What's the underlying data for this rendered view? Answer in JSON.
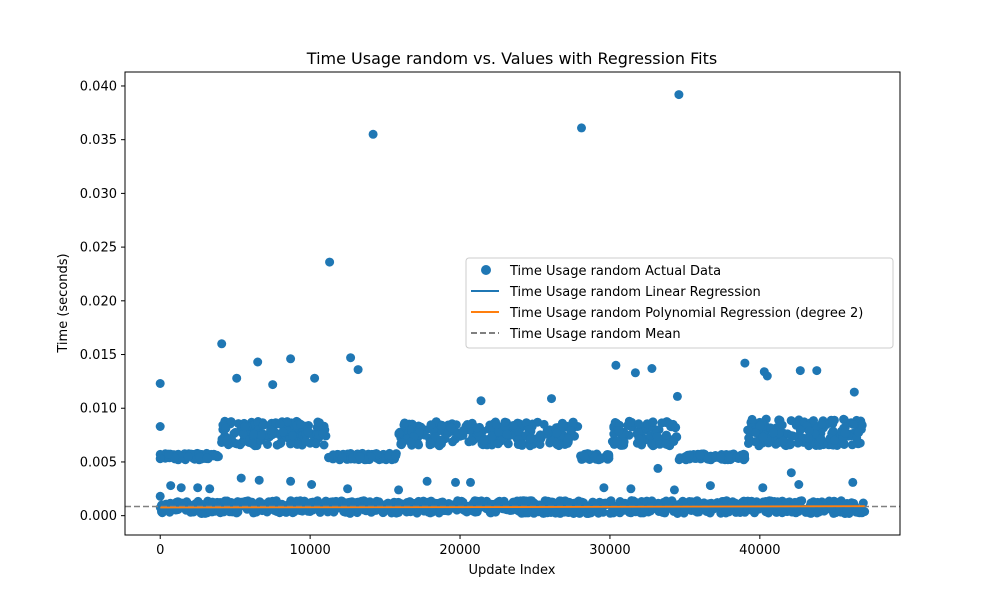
{
  "chart_data": {
    "type": "scatter",
    "title": "Time Usage random vs. Values with Regression Fits",
    "xlabel": "Update Index",
    "ylabel": "Time (seconds)",
    "xlim": [
      -2350,
      49350
    ],
    "ylim": [
      -0.0018,
      0.0413
    ],
    "x_ticks": [
      0,
      10000,
      20000,
      30000,
      40000
    ],
    "x_tick_labels": [
      "0",
      "10000",
      "20000",
      "30000",
      "40000"
    ],
    "y_ticks": [
      0.0,
      0.005,
      0.01,
      0.015,
      0.02,
      0.025,
      0.03,
      0.035,
      0.04
    ],
    "y_tick_labels": [
      "0.000",
      "0.005",
      "0.010",
      "0.015",
      "0.020",
      "0.025",
      "0.030",
      "0.035",
      "0.040"
    ],
    "grid": false,
    "legend_position": "center-right",
    "colors": {
      "scatter": "#1f77b4",
      "linear": "#1f77b4",
      "poly": "#ff7f0e",
      "mean": "#808080"
    },
    "series": [
      {
        "name": "Time Usage random Actual Data",
        "kind": "scatter",
        "points": [
          [
            0,
            0.0123
          ],
          [
            0,
            0.0083
          ],
          [
            0,
            0.0057
          ],
          [
            0,
            0.0053
          ],
          [
            0,
            0.0018
          ],
          [
            4100,
            0.016
          ],
          [
            5100,
            0.0128
          ],
          [
            6500,
            0.0143
          ],
          [
            7500,
            0.0122
          ],
          [
            8700,
            0.0146
          ],
          [
            10300,
            0.0128
          ],
          [
            11300,
            0.0236
          ],
          [
            12700,
            0.0147
          ],
          [
            13200,
            0.0136
          ],
          [
            14200,
            0.0355
          ],
          [
            26100,
            0.0109
          ],
          [
            21400,
            0.0107
          ],
          [
            28100,
            0.0361
          ],
          [
            30400,
            0.014
          ],
          [
            31700,
            0.0133
          ],
          [
            32800,
            0.0137
          ],
          [
            34600,
            0.0392
          ],
          [
            34500,
            0.0111
          ],
          [
            39000,
            0.0142
          ],
          [
            40300,
            0.0134
          ],
          [
            40500,
            0.013
          ],
          [
            42700,
            0.0135
          ],
          [
            43800,
            0.0135
          ],
          [
            46300,
            0.0115
          ],
          [
            33200,
            0.0044
          ],
          [
            42100,
            0.004
          ],
          [
            46200,
            0.0031
          ],
          [
            700,
            0.0028
          ],
          [
            1400,
            0.0026
          ],
          [
            2500,
            0.0026
          ],
          [
            3300,
            0.0025
          ],
          [
            5400,
            0.0035
          ],
          [
            6600,
            0.0033
          ],
          [
            8700,
            0.0032
          ],
          [
            10100,
            0.0029
          ],
          [
            12500,
            0.0025
          ],
          [
            15900,
            0.0024
          ],
          [
            17800,
            0.0032
          ],
          [
            19700,
            0.0031
          ],
          [
            20700,
            0.0031
          ],
          [
            29600,
            0.0026
          ],
          [
            31400,
            0.0025
          ],
          [
            34300,
            0.0024
          ],
          [
            36700,
            0.0028
          ],
          [
            40200,
            0.0026
          ],
          [
            42600,
            0.0029
          ]
        ]
      },
      {
        "name": "Time Usage random Linear Regression",
        "kind": "line",
        "x": [
          0,
          47000
        ],
        "y": [
          0.00075,
          0.00087
        ]
      },
      {
        "name": "Time Usage random Polynomial Regression (degree 2)",
        "kind": "line",
        "x": [
          0,
          23500,
          47000
        ],
        "y": [
          0.00076,
          0.0008,
          0.00088
        ]
      },
      {
        "name": "Time Usage random Mean",
        "kind": "hline",
        "y": 0.00085
      }
    ],
    "clusters": [
      {
        "x": [
          0,
          3900
        ],
        "y": [
          0.0052,
          0.0058
        ]
      },
      {
        "x": [
          4000,
          11100
        ],
        "y": [
          0.0065,
          0.0088
        ]
      },
      {
        "x": [
          11200,
          15800
        ],
        "y": [
          0.0052,
          0.0058
        ]
      },
      {
        "x": [
          15900,
          27900
        ],
        "y": [
          0.0065,
          0.0088
        ]
      },
      {
        "x": [
          28000,
          30000
        ],
        "y": [
          0.0052,
          0.0058
        ]
      },
      {
        "x": [
          30100,
          34500
        ],
        "y": [
          0.0065,
          0.0088
        ]
      },
      {
        "x": [
          34600,
          39000
        ],
        "y": [
          0.0052,
          0.0058
        ]
      },
      {
        "x": [
          39100,
          47000
        ],
        "y": [
          0.0065,
          0.009
        ]
      },
      {
        "x": [
          0,
          47000
        ],
        "y": [
          0.0002,
          0.0014
        ]
      }
    ]
  }
}
